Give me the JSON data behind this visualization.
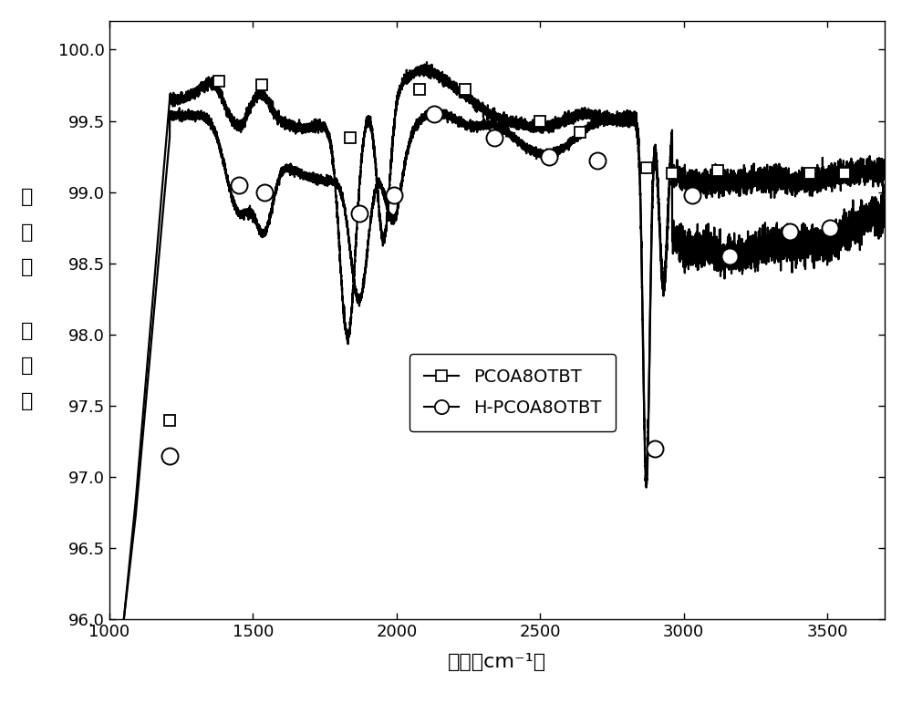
{
  "xlabel": "波数（cm⁻¹）",
  "ylabel_top": "透过率",
  "ylabel_bottom": "（％）",
  "xlim": [
    1000,
    3700
  ],
  "ylim": [
    96.0,
    100.2
  ],
  "yticks": [
    96.0,
    96.5,
    97.0,
    97.5,
    98.0,
    98.5,
    99.0,
    99.5,
    100.0
  ],
  "xticks": [
    1000,
    1500,
    2000,
    2500,
    3000,
    3500
  ],
  "legend_labels": [
    "PCOA8OTBT",
    "H-PCOA8OTBT"
  ],
  "line_color": "#000000",
  "background_color": "#ffffff",
  "sq_x": [
    1210,
    1380,
    1530,
    1840,
    2080,
    2240,
    2500,
    2640,
    2870,
    2960,
    3120,
    3440,
    3560
  ],
  "sq_y": [
    97.4,
    99.78,
    99.75,
    99.38,
    99.72,
    99.72,
    99.5,
    99.42,
    99.17,
    99.13,
    99.15,
    99.13,
    99.13
  ],
  "ci_x": [
    1210,
    1450,
    1540,
    1870,
    1990,
    2130,
    2340,
    2530,
    2700,
    2900,
    3030,
    3160,
    3370,
    3510
  ],
  "ci_y": [
    97.15,
    99.05,
    99.0,
    98.85,
    98.98,
    99.55,
    99.38,
    99.25,
    99.22,
    97.2,
    98.98,
    98.55,
    98.72,
    98.75
  ]
}
